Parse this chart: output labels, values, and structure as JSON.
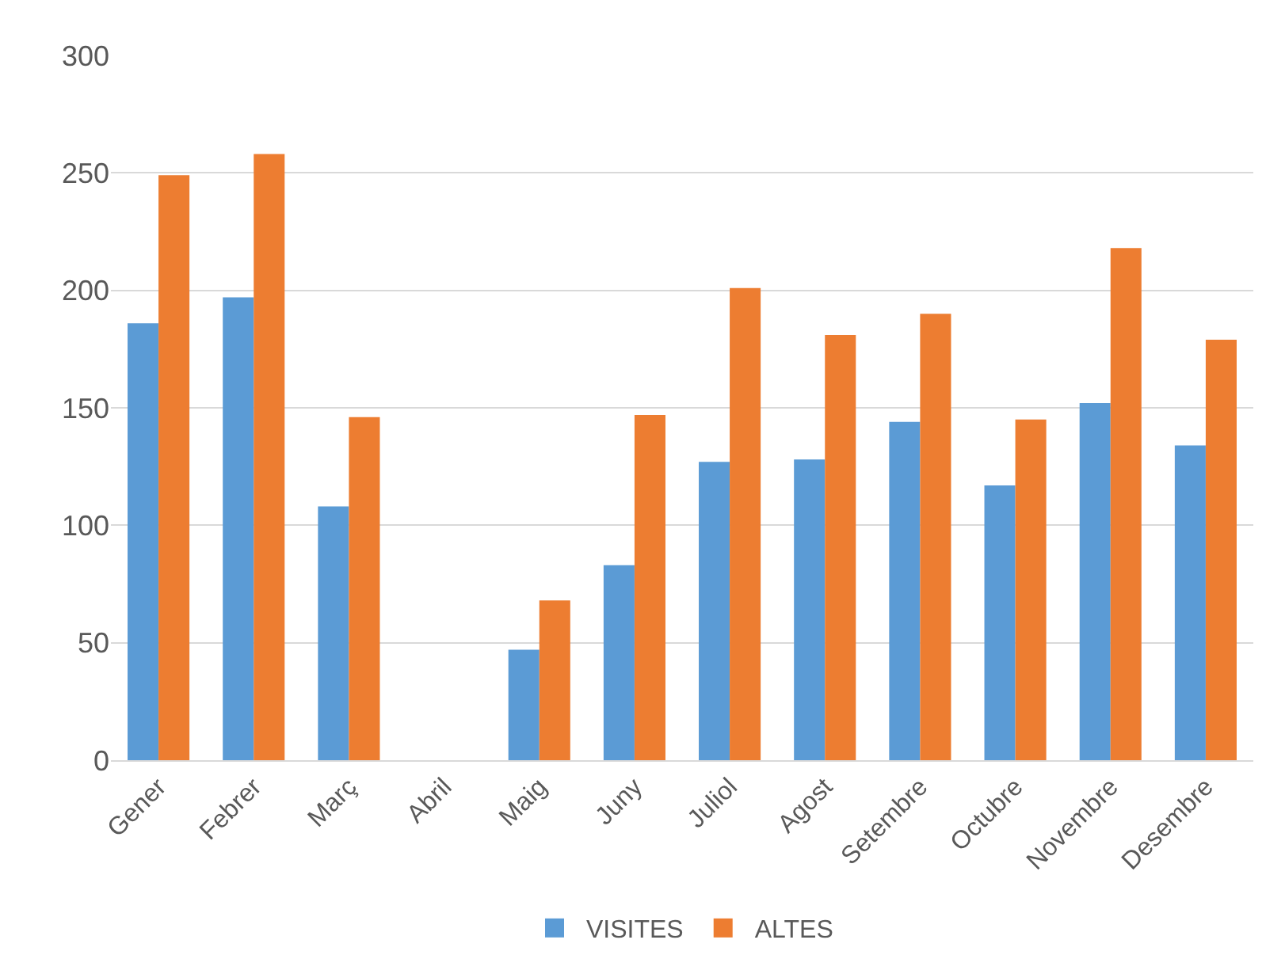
{
  "chart_data": {
    "type": "bar",
    "categories": [
      "Gener",
      "Febrer",
      "Març",
      "Abril",
      "Maig",
      "Juny",
      "Juliol",
      "Agost",
      "Setembre",
      "Octubre",
      "Novembre",
      "Desembre"
    ],
    "series": [
      {
        "name": "VISITES",
        "color": "#5b9bd5",
        "values": [
          186,
          197,
          108,
          0,
          47,
          83,
          127,
          128,
          144,
          117,
          152,
          134
        ]
      },
      {
        "name": "ALTES",
        "color": "#ed7d31",
        "values": [
          249,
          258,
          146,
          0,
          68,
          147,
          201,
          181,
          190,
          145,
          218,
          179
        ]
      }
    ],
    "ylim": [
      0,
      300
    ],
    "yticks": [
      0,
      50,
      100,
      150,
      200,
      250,
      300
    ],
    "grid": "y",
    "legend": "bottom"
  }
}
